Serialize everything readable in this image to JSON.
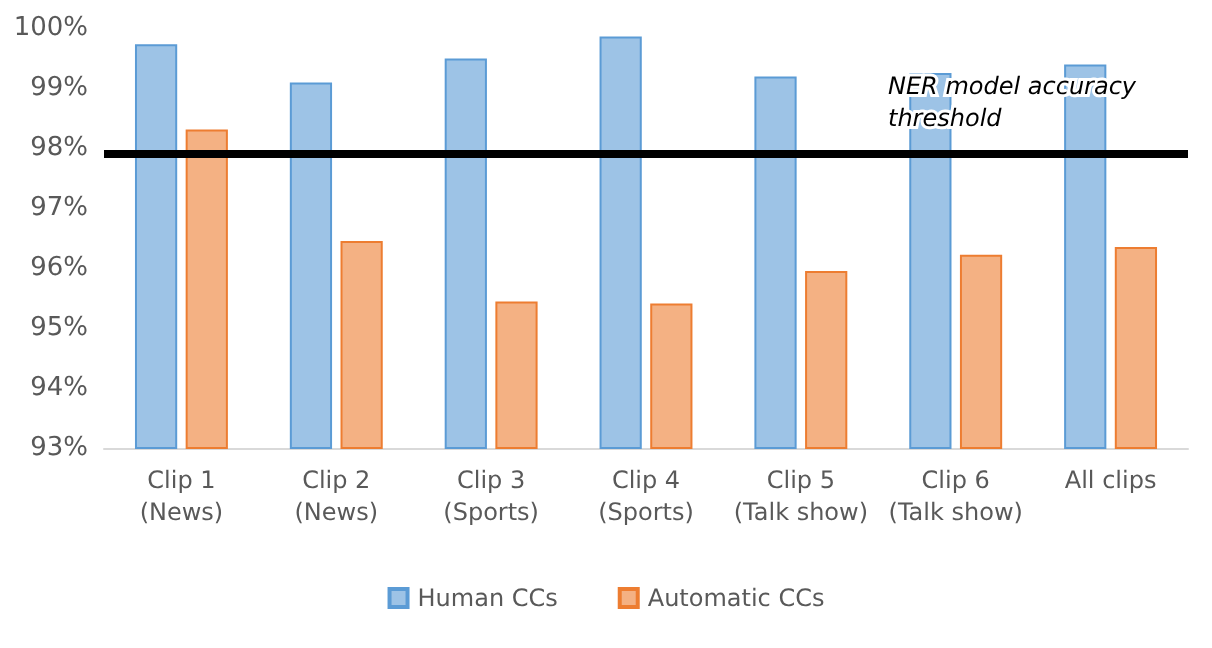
{
  "chart_data": {
    "type": "bar",
    "categories": [
      "Clip 1\n(News)",
      "Clip 2\n(News)",
      "Clip 3\n(Sports)",
      "Clip 4\n(Sports)",
      "Clip 5\n(Talk show)",
      "Clip 6\n(Talk show)",
      "All clips"
    ],
    "series": [
      {
        "name": "Human CCs",
        "color": "#9dc3e6",
        "values": [
          99.73,
          99.09,
          99.49,
          99.86,
          99.19,
          99.25,
          99.39
        ]
      },
      {
        "name": "Automatic CCs",
        "color": "#f4b183",
        "values": [
          98.31,
          96.45,
          95.44,
          95.41,
          95.95,
          96.22,
          96.35
        ]
      }
    ],
    "ylim": [
      93,
      100
    ],
    "yticks": [
      {
        "value": 93,
        "label": "93%"
      },
      {
        "value": 94,
        "label": "94%"
      },
      {
        "value": 95,
        "label": "95%"
      },
      {
        "value": 96,
        "label": "96%"
      },
      {
        "value": 97,
        "label": "97%"
      },
      {
        "value": 98,
        "label": "98%"
      },
      {
        "value": 99,
        "label": "99%"
      },
      {
        "value": 100,
        "label": "100%"
      }
    ],
    "ref_lines": [
      {
        "axis": "y",
        "value": 97.9,
        "label": "NER model accuracy threshold",
        "color": "#000000"
      }
    ],
    "grid": false,
    "legend": "bottom"
  }
}
